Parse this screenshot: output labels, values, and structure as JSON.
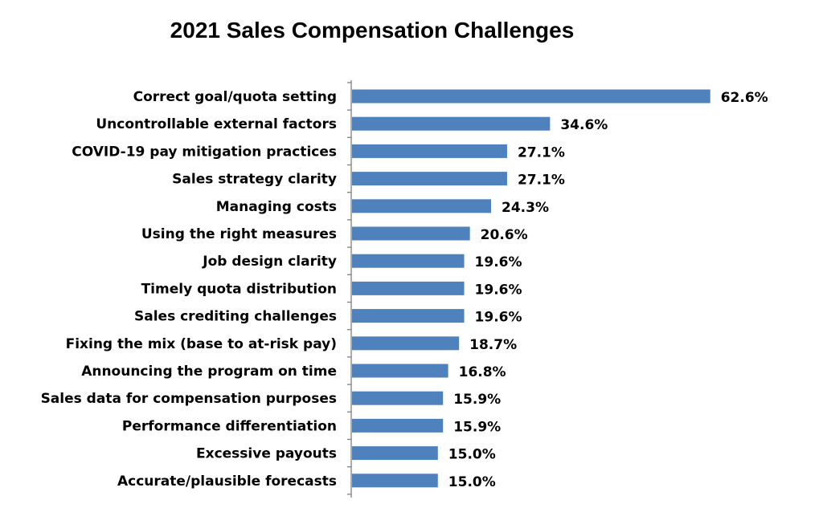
{
  "chart_data": {
    "type": "bar",
    "orientation": "horizontal",
    "title": "2021 Sales Compensation Challenges",
    "xlabel": "",
    "ylabel": "",
    "categories": [
      "Correct goal/quota setting",
      "Uncontrollable external factors",
      "COVID-19 pay mitigation practices",
      "Sales strategy clarity",
      "Managing costs",
      "Using the right measures",
      "Job design clarity",
      "Timely quota distribution",
      "Sales crediting challenges",
      "Fixing the mix (base to at-risk pay)",
      "Announcing the program on time",
      "Sales data for compensation purposes",
      "Performance differentiation",
      "Excessive payouts",
      "Accurate/plausible forecasts"
    ],
    "values": [
      62.6,
      34.6,
      27.1,
      27.1,
      24.3,
      20.6,
      19.6,
      19.6,
      19.6,
      18.7,
      16.8,
      15.9,
      15.9,
      15.0,
      15.0
    ],
    "value_labels": [
      "62.6%",
      "34.6%",
      "27.1%",
      "27.1%",
      "24.3%",
      "20.6%",
      "19.6%",
      "19.6%",
      "19.6%",
      "18.7%",
      "16.8%",
      "15.9%",
      "15.9%",
      "15.0%",
      "15.0%"
    ],
    "unit": "%",
    "bar_color": "#4F81BD",
    "axis_color": "#808080",
    "grid": false,
    "legend": "none"
  }
}
